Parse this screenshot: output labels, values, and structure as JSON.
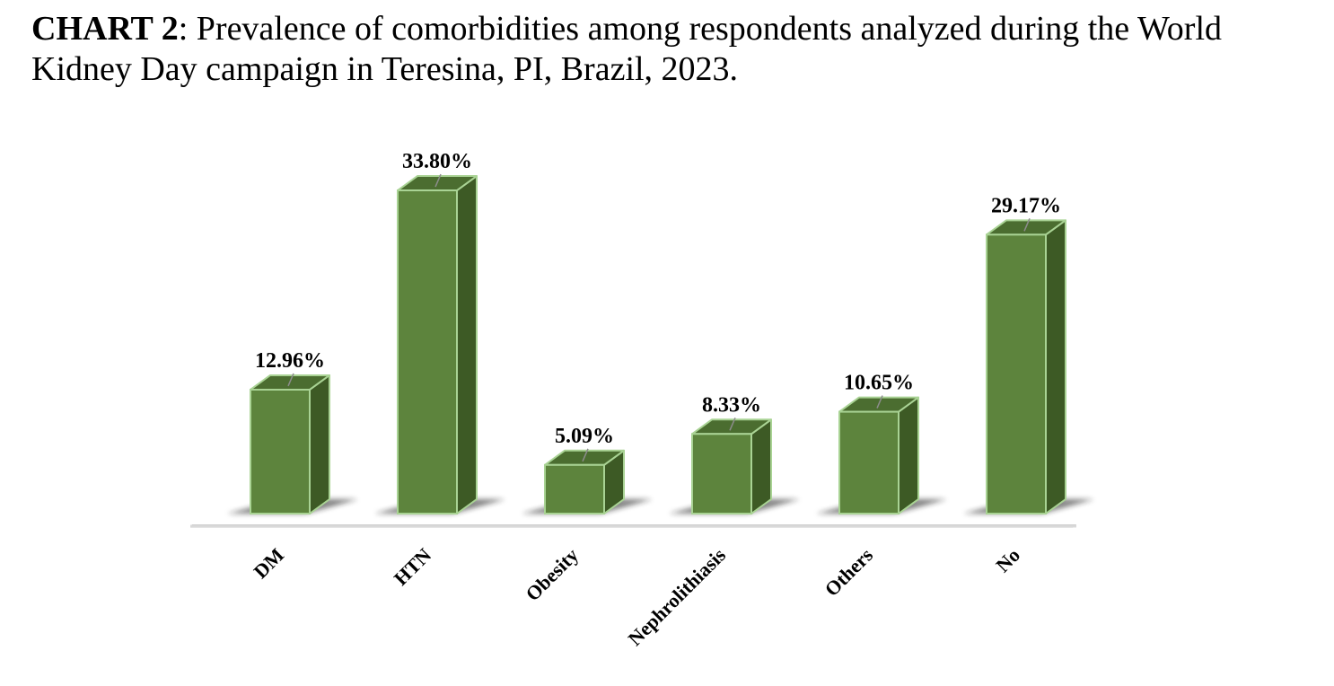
{
  "caption": {
    "label": "CHART 2",
    "text": ": Prevalence of comorbidities among respondents analyzed during the World Kidney Day campaign in Teresina, PI, Brazil, 2023."
  },
  "colors": {
    "bar_front": "#5d843d",
    "bar_side": "#3d5a25",
    "bar_top": "#4b6d30",
    "bar_edge": "#a9d394",
    "baseline": "#d9d9d9"
  },
  "chart_data": {
    "type": "bar",
    "style": "3d-column",
    "categories": [
      "DM",
      "HTN",
      "Obesity",
      "Nephrolithiasis",
      "Others",
      "No"
    ],
    "values": [
      12.96,
      33.8,
      5.09,
      8.33,
      10.65,
      29.17
    ],
    "data_labels": [
      "12.96%",
      "33.80%",
      "5.09%",
      "8.33%",
      "10.65%",
      "29.17%"
    ],
    "unit": "%",
    "ylim": [
      0,
      35
    ],
    "grid": false,
    "legend": "none",
    "xlabel": "",
    "ylabel": ""
  }
}
